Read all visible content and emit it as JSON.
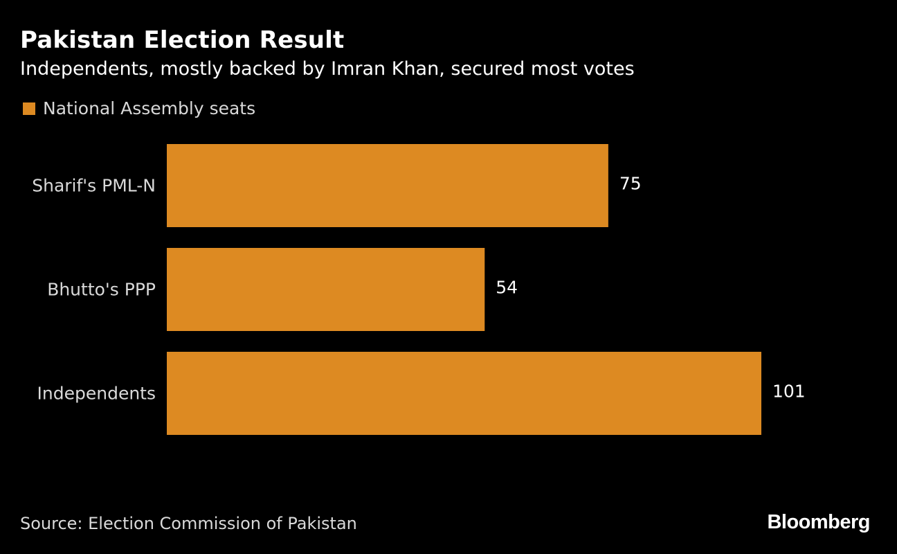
{
  "header": {
    "title": "Pakistan Election Result",
    "subtitle": "Independents, mostly backed by Imran Khan, secured most votes"
  },
  "legend": {
    "label": "National Assembly seats"
  },
  "footer": {
    "source": "Source: Election Commission of Pakistan",
    "logo": "Bloomberg"
  },
  "colors": {
    "background": "#000000",
    "bar": "#dd8a22",
    "text": "#ffffff",
    "muted_text": "#d9d9d9"
  },
  "chart_data": {
    "type": "bar",
    "orientation": "horizontal",
    "title": "Pakistan Election Result",
    "subtitle": "Independents, mostly backed by Imran Khan, secured most votes",
    "categories": [
      "Sharif's PML-N",
      "Bhutto's PPP",
      "Independents"
    ],
    "series": [
      {
        "name": "National Assembly seats",
        "values": [
          75,
          54,
          101
        ]
      }
    ],
    "data_labels": [
      "75",
      "54",
      "101"
    ],
    "xlim": [
      0,
      101
    ],
    "grid": false,
    "legend_position": "top-left"
  }
}
